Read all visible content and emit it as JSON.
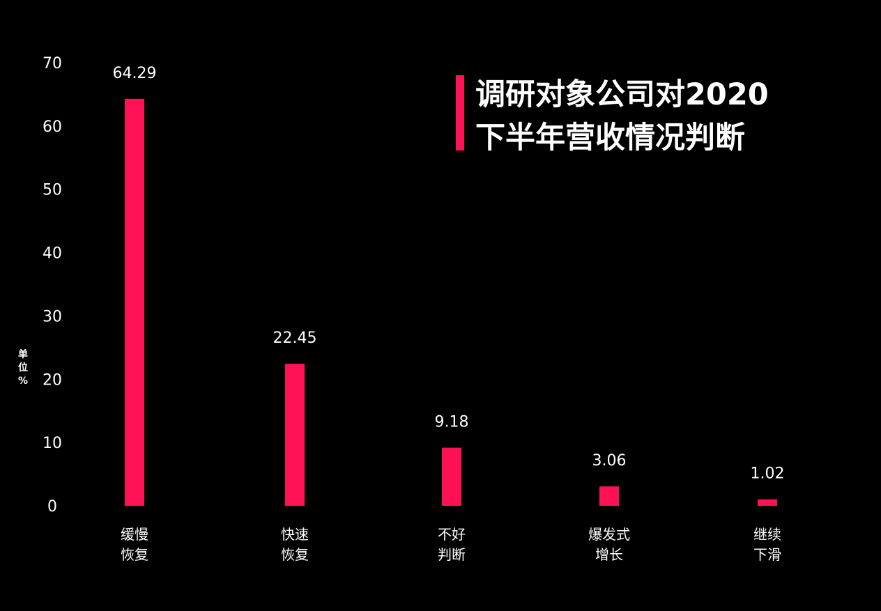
{
  "chart_data": {
    "type": "bar",
    "title": [
      "调研对象公司对2020",
      "下半年营收情况判断"
    ],
    "ylabel": "单位%",
    "ylim": [
      0,
      70
    ],
    "yticks": [
      0,
      10,
      20,
      30,
      40,
      50,
      60,
      70
    ],
    "categories": [
      [
        "缓慢",
        "恢复"
      ],
      [
        "快速",
        "恢复"
      ],
      [
        "不好",
        "判断"
      ],
      [
        "爆发式",
        "增长"
      ],
      [
        "继续",
        "下滑"
      ]
    ],
    "values": [
      64.29,
      22.45,
      9.18,
      3.06,
      1.02
    ],
    "value_labels": [
      "64.29",
      "22.45",
      "9.18",
      "3.06",
      "1.02"
    ],
    "grid": false,
    "legend": "none"
  },
  "colors": {
    "background": "#000000",
    "bar": "#ff1155",
    "text": "#ffffff"
  }
}
